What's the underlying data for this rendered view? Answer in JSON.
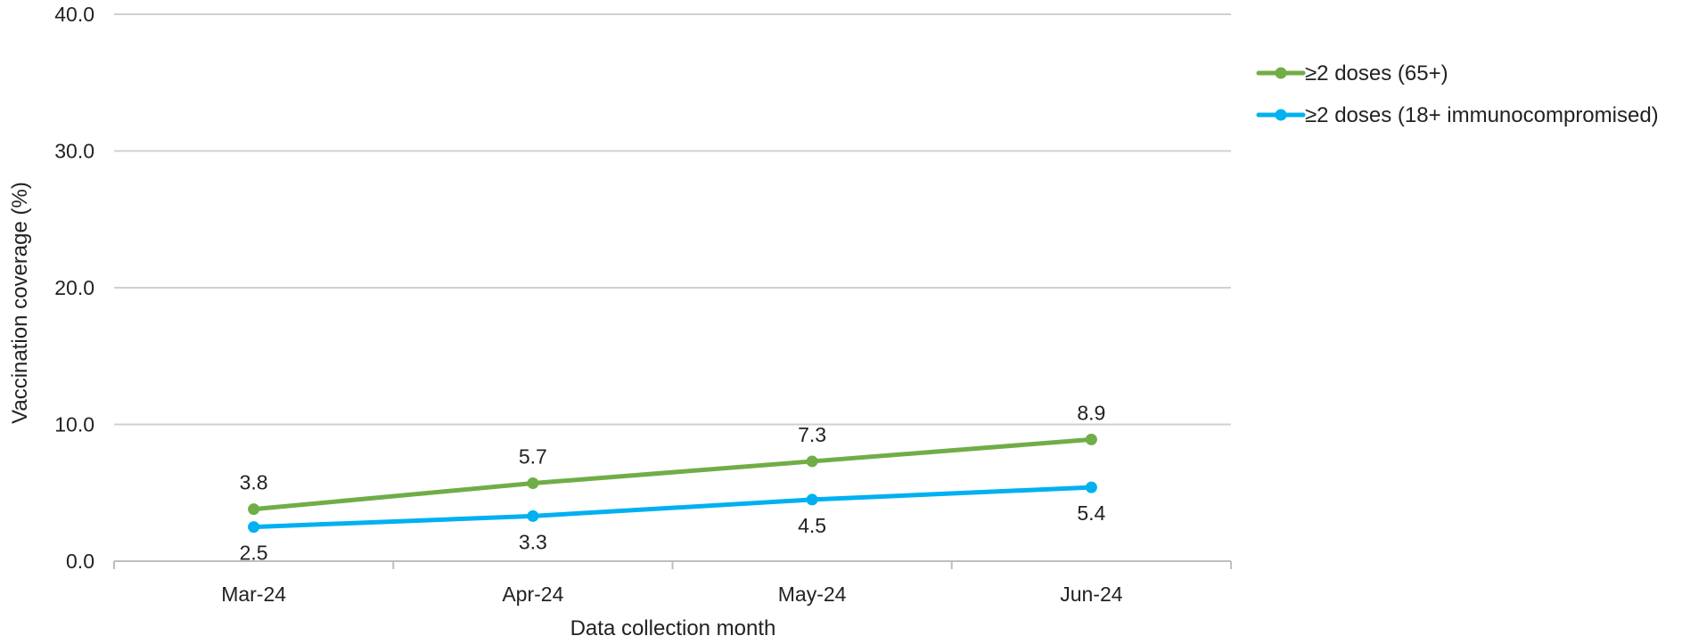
{
  "chart_data": {
    "type": "line",
    "xlabel": "Data collection month",
    "ylabel": "Vaccination coverage (%)",
    "categories": [
      "Mar-24",
      "Apr-24",
      "May-24",
      "Jun-24"
    ],
    "ylim": [
      0,
      40
    ],
    "yticks": [
      "0.0",
      "10.0",
      "20.0",
      "30.0",
      "40.0"
    ],
    "grid": "horizontal",
    "legend_position": "right",
    "series": [
      {
        "name": "≥2 doses (65+)",
        "values": [
          3.8,
          5.7,
          7.3,
          8.9
        ],
        "labels": [
          "3.8",
          "5.7",
          "7.3",
          "8.9"
        ],
        "label_position": "above",
        "color": "#70AD47"
      },
      {
        "name": "≥2 doses (18+ immunocompromised)",
        "values": [
          2.5,
          3.3,
          4.5,
          5.4
        ],
        "labels": [
          "2.5",
          "3.3",
          "4.5",
          "5.4"
        ],
        "label_position": "below",
        "color": "#00B0F0"
      }
    ],
    "colors": {
      "grid": "#D0D0D0",
      "axis": "#BFBFBF",
      "text": "#222222"
    }
  }
}
